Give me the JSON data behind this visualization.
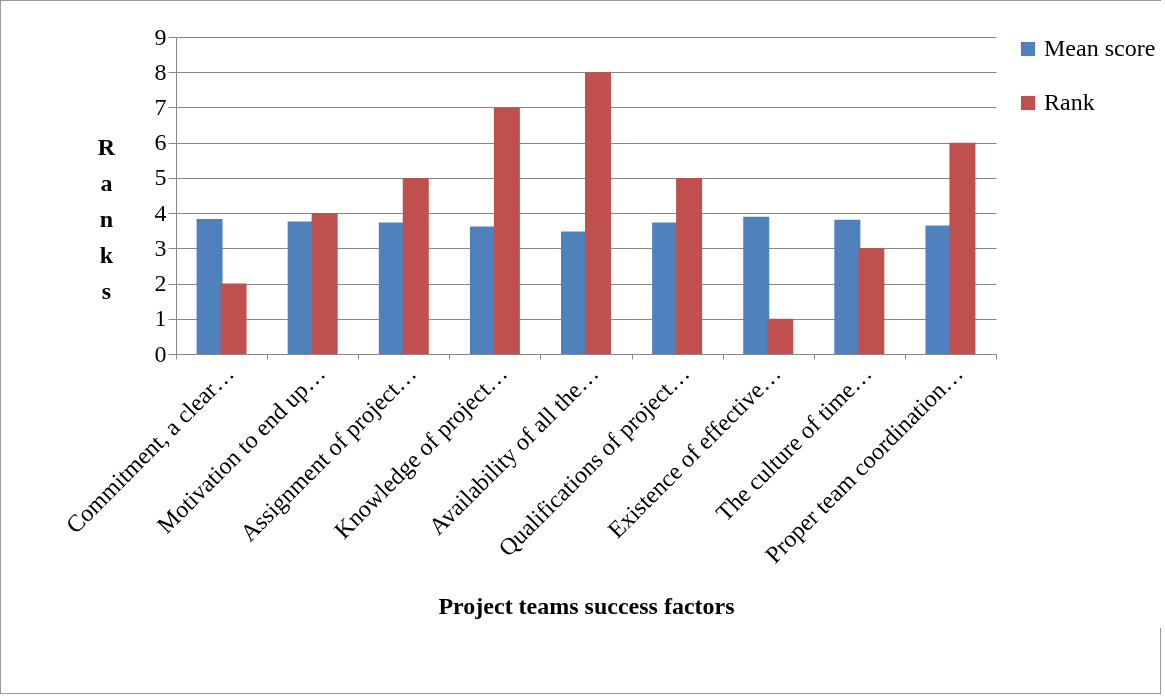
{
  "chart_data": {
    "type": "bar",
    "xlabel": "Project teams success factors",
    "ylabel": "Ranks",
    "categories": [
      "Commitment, a clear…",
      "Motivation to end up…",
      "Assignment of project…",
      "Knowledge of project…",
      "Availability of all the…",
      "Qualifications of project…",
      "Existence of effective…",
      "The culture of time…",
      "Proper team coordination…"
    ],
    "series": [
      {
        "name": "Mean score",
        "color": "#4f81bd",
        "values": [
          3.83,
          3.76,
          3.73,
          3.62,
          3.48,
          3.73,
          3.9,
          3.81,
          3.65
        ]
      },
      {
        "name": "Rank",
        "color": "#c0504d",
        "values": [
          2,
          4,
          5,
          7,
          8,
          5,
          1,
          3,
          6
        ]
      }
    ],
    "ylim": [
      0,
      9
    ],
    "yticks": [
      0,
      1,
      2,
      3,
      4,
      5,
      6,
      7,
      8,
      9
    ],
    "grid": "y",
    "legend": "right"
  }
}
